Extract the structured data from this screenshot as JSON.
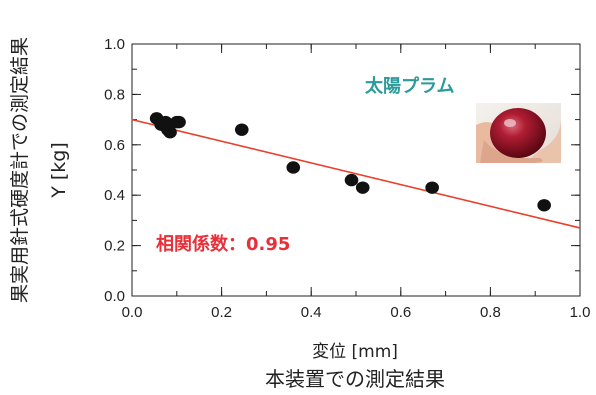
{
  "chart_data": {
    "type": "scatter",
    "xlabel": "変位 [mm]",
    "xlabel_sub": "本装置での測定結果",
    "ylabel": "Y [kg]",
    "ylabel_sub": "果実用針式硬度計での測定結果",
    "xlim": [
      0,
      1.0
    ],
    "ylim": [
      0,
      1.0
    ],
    "xticks": [
      "0.0",
      "0.2",
      "0.4",
      "0.6",
      "0.8",
      "1.0"
    ],
    "yticks": [
      "0.0",
      "0.2",
      "0.4",
      "0.6",
      "0.8",
      "1.0"
    ],
    "x_minor_step": 0.1,
    "y_minor_step": 0.1,
    "grid": false,
    "points": [
      {
        "x": 0.055,
        "y": 0.705
      },
      {
        "x": 0.065,
        "y": 0.68
      },
      {
        "x": 0.075,
        "y": 0.69
      },
      {
        "x": 0.08,
        "y": 0.66
      },
      {
        "x": 0.085,
        "y": 0.65
      },
      {
        "x": 0.1,
        "y": 0.69
      },
      {
        "x": 0.105,
        "y": 0.69
      },
      {
        "x": 0.245,
        "y": 0.66
      },
      {
        "x": 0.36,
        "y": 0.51
      },
      {
        "x": 0.49,
        "y": 0.46
      },
      {
        "x": 0.515,
        "y": 0.43
      },
      {
        "x": 0.67,
        "y": 0.43
      },
      {
        "x": 0.92,
        "y": 0.36
      }
    ],
    "fit_line": {
      "x": [
        0,
        1.0
      ],
      "y": [
        0.7,
        0.27
      ],
      "color": "#e8402a"
    },
    "point_color": "#111111",
    "annotations": {
      "title": "太陽プラム",
      "correlation": "相関係数：0.95",
      "title_color": "#2a9a9a",
      "correlation_color": "#e8303a"
    },
    "photo": "red-plum-in-hand"
  }
}
